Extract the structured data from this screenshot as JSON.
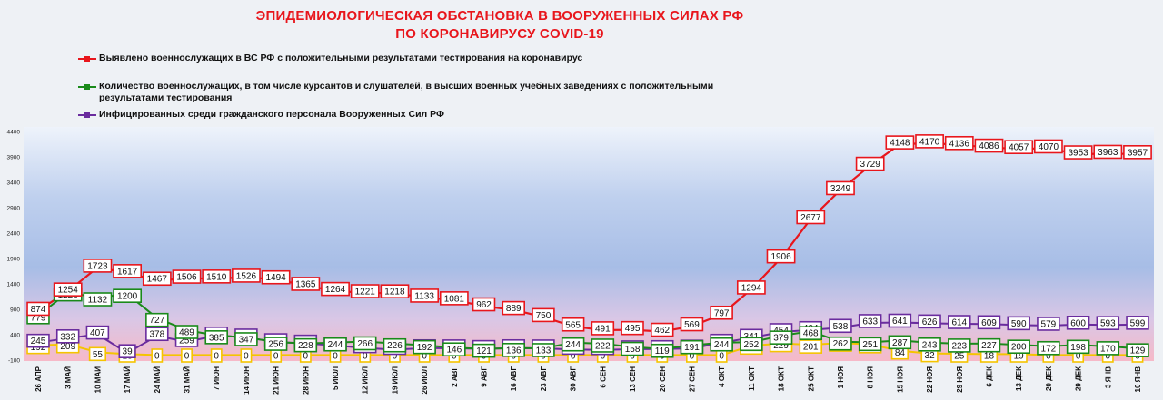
{
  "title": {
    "line1": "ЭПИДЕМИОЛОГИЧЕСКАЯ ОБСТАНОВКА В ВООРУЖЕННЫХ СИЛАХ РФ",
    "line2": "ПО КОРОНАВИРУСУ COVID-19"
  },
  "colors": {
    "red": "#e8161c",
    "green": "#1a8a1a",
    "purple": "#6a2c9e",
    "yellow": "#f5c400"
  },
  "chart_data": {
    "type": "line",
    "title": "ЭПИДЕМИОЛОГИЧЕСКАЯ ОБСТАНОВКА В ВООРУЖЕННЫХ СИЛАХ РФ ПО КОРОНАВИРУСУ COVID-19",
    "ylim": [
      -100,
      4400
    ],
    "yticks": [
      -100,
      400,
      900,
      1400,
      1900,
      2400,
      2900,
      3400,
      3900,
      4400
    ],
    "grid": false,
    "legend_position": "top-left",
    "categories": [
      "26 АПР",
      "3 МАЙ",
      "10 МАЙ",
      "17 МАЙ",
      "24 МАЙ",
      "31 МАЙ",
      "7 ИЮН",
      "14 ИЮН",
      "21 ИЮН",
      "28 ИЮН",
      "5 ИЮЛ",
      "12 ИЮЛ",
      "19 ИЮЛ",
      "26 ИЮЛ",
      "2 АВГ",
      "9 АВГ",
      "16 АВГ",
      "23 АВГ",
      "30 АВГ",
      "6 СЕН",
      "13 СЕН",
      "20 СЕН",
      "27 СЕН",
      "4 ОКТ",
      "11 ОКТ",
      "18 ОКТ",
      "25 ОКТ",
      "1 НОЯ",
      "8 НОЯ",
      "15 НОЯ",
      "22 НОЯ",
      "29 НОЯ",
      "6 ДЕК",
      "13 ДЕК",
      "20 ДЕК",
      "29 ДЕК",
      "3 ЯНВ",
      "10 ЯНВ"
    ],
    "series": [
      {
        "name": "Выявлено военнослужащих в ВС РФ с положительными результатами тестирования на коронавирус",
        "color": "#e8161c",
        "values": [
          874,
          1254,
          1723,
          1617,
          1467,
          1506,
          1510,
          1526,
          1494,
          1365,
          1264,
          1221,
          1218,
          1133,
          1081,
          962,
          889,
          750,
          565,
          491,
          495,
          462,
          569,
          797,
          1294,
          1906,
          2677,
          3249,
          3729,
          4148,
          4170,
          4136,
          4086,
          4057,
          4070,
          3953,
          3963,
          3957
        ]
      },
      {
        "name": "Количество военнослужащих, в том числе курсантов и слушателей, в высших военных учебных заведениях с положительными результатами тестирования",
        "color": "#1a8a1a",
        "values": [
          779,
          1228,
          1132,
          1200,
          727,
          489,
          385,
          347,
          256,
          228,
          244,
          266,
          226,
          192,
          146,
          121,
          136,
          133,
          244,
          222,
          158,
          119,
          191,
          244,
          252,
          379,
          468,
          262,
          251,
          287,
          243,
          223,
          227,
          200,
          172,
          198,
          170,
          129
        ]
      },
      {
        "name": "Инфицированных среди гражданского персонала Вооруженных Сил РФ",
        "color": "#6a2c9e",
        "values": [
          245,
          332,
          407,
          39,
          378,
          259,
          385,
          347,
          256,
          228,
          187,
          139,
          105,
          136,
          134,
          121,
          136,
          133,
          108,
          102,
          115,
          119,
          129,
          244,
          341,
          454,
          494,
          538,
          633,
          641,
          626,
          614,
          609,
          590,
          579,
          600,
          593,
          599
        ]
      },
      {
        "name": "",
        "color": "#f5c400",
        "values": [
          192,
          209,
          55,
          18,
          0,
          0,
          0,
          0,
          0,
          0,
          0,
          0,
          0,
          0,
          0,
          0,
          0,
          0,
          0,
          0,
          0,
          0,
          0,
          0,
          181,
          229,
          201,
          237,
          207,
          84,
          32,
          25,
          18,
          19,
          0,
          0,
          0,
          0
        ]
      }
    ]
  },
  "legend": {
    "item1": "Выявлено военнослужащих в ВС РФ с положительными результатами тестирования на коронавирус",
    "item2": "Количество военнослужащих, в том числе курсантов и слушателей, в высших военных учебных заведениях с положительными результатами тестирования",
    "item3": "Инфицированных среди гражданского персонала Вооруженных Сил РФ"
  }
}
